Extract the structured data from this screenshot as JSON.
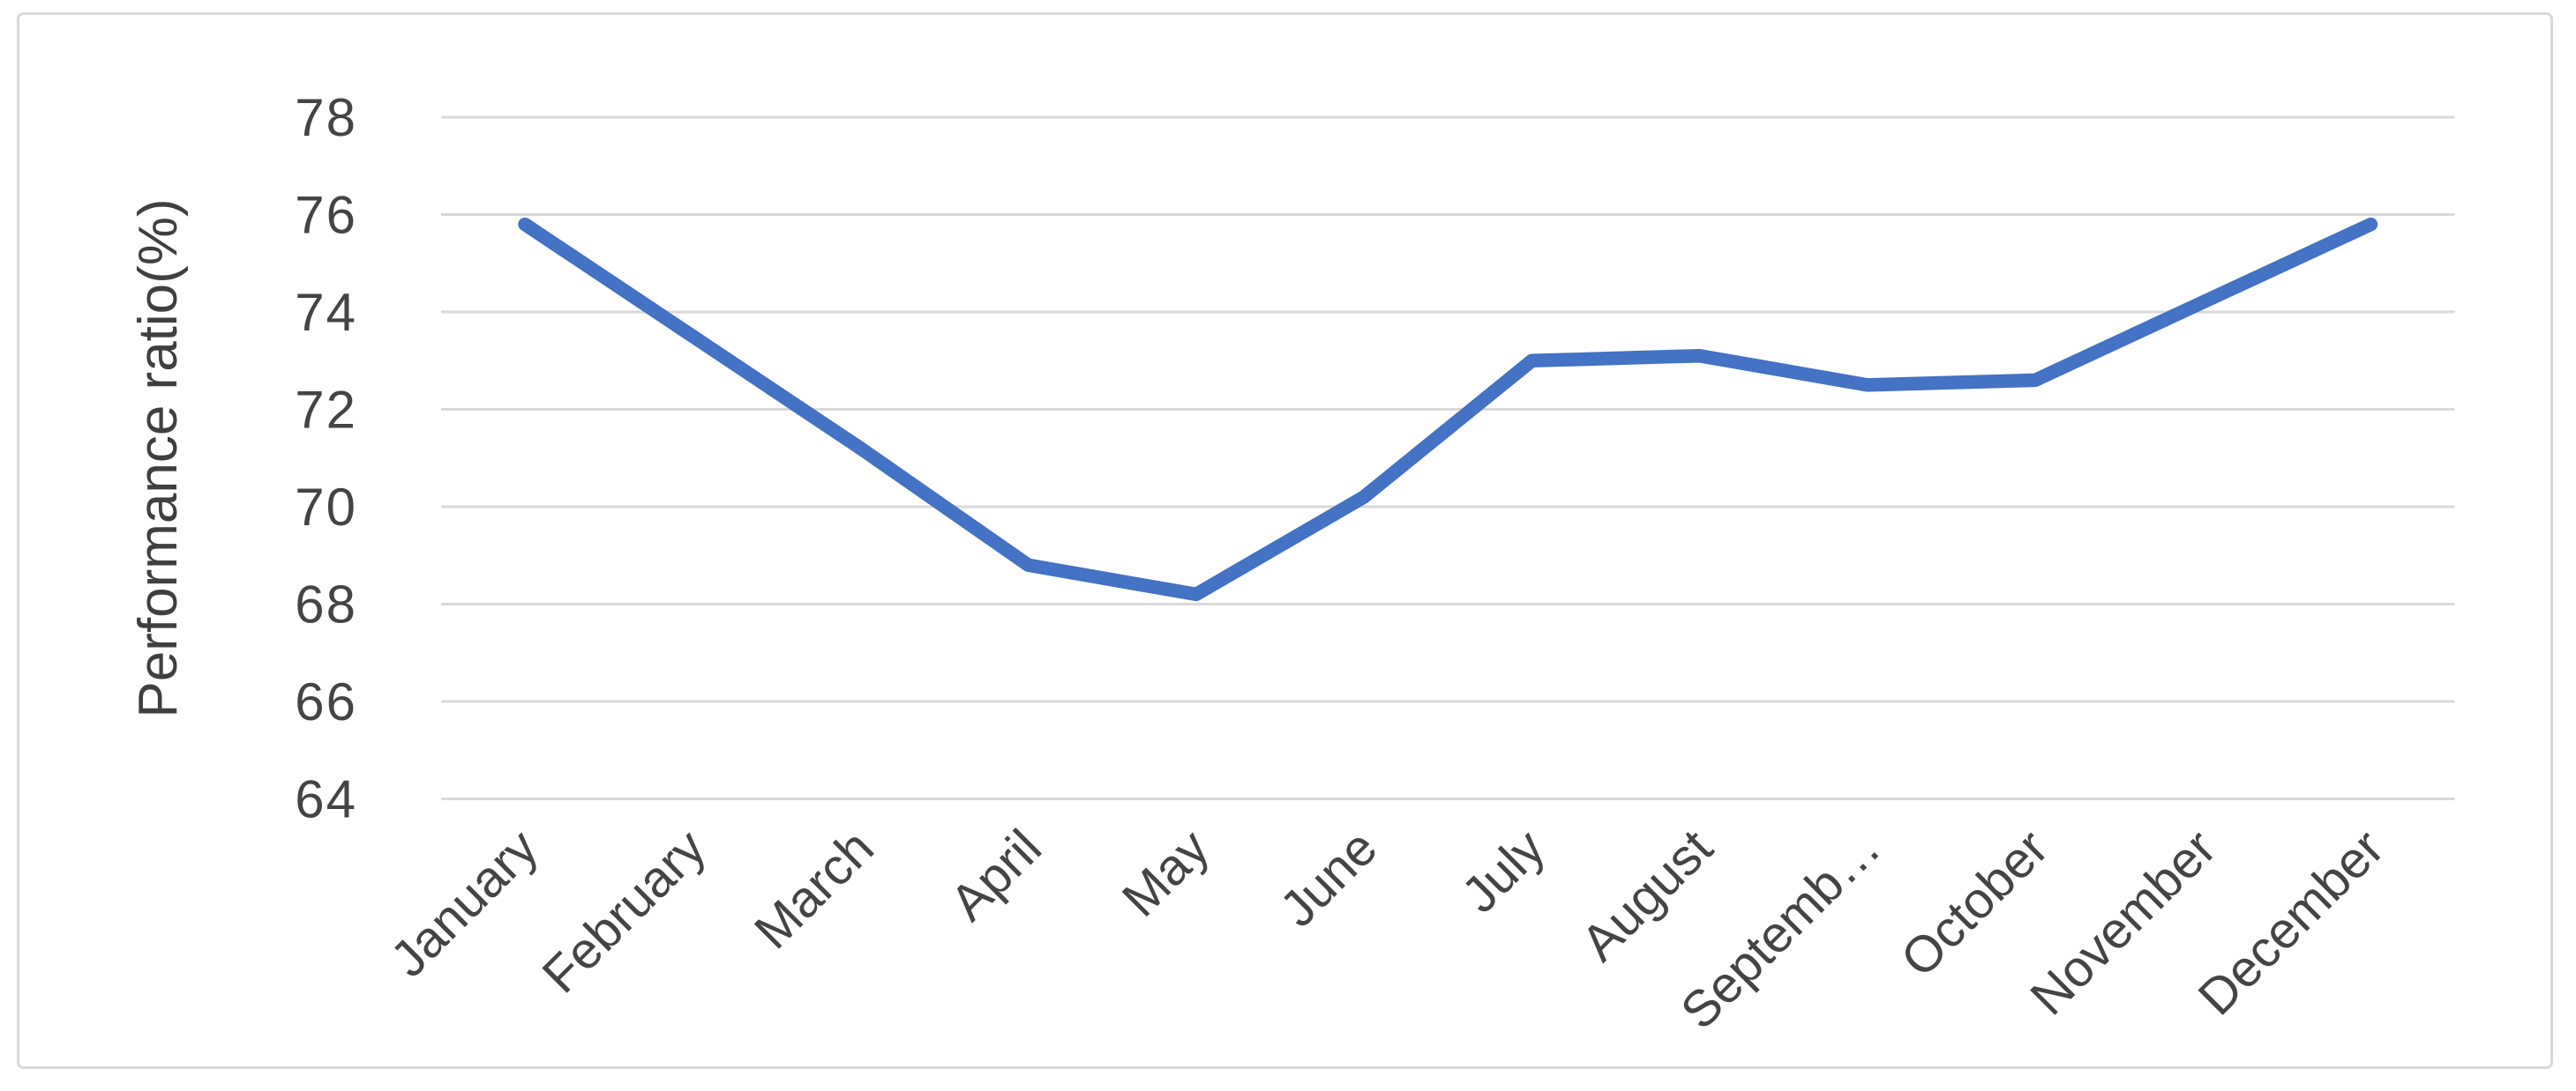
{
  "window": {
    "background": "#ffffff",
    "frame_border_color": "#d9d9d9"
  },
  "chart_data": {
    "type": "line",
    "title": "",
    "xlabel": "",
    "ylabel": "Performance ratio(%)",
    "categories": [
      "January",
      "February",
      "March",
      "April",
      "May",
      "June",
      "July",
      "August",
      "September",
      "October",
      "November",
      "December"
    ],
    "xtick_labels": [
      "January",
      "February",
      "March",
      "April",
      "May",
      "June",
      "July",
      "August",
      "Septemb…",
      "October",
      "November",
      "December"
    ],
    "series": [
      {
        "name": "Performance ratio(%)",
        "color": "#4472C4",
        "values": [
          75.8,
          73.5,
          71.2,
          68.8,
          68.2,
          70.2,
          73.0,
          73.1,
          72.5,
          72.6,
          74.2,
          75.8
        ]
      }
    ],
    "ylim": [
      64,
      78
    ],
    "ytick_step": 2,
    "yticks": [
      64,
      66,
      68,
      70,
      72,
      74,
      76,
      78
    ],
    "grid": "horizontal-only",
    "legend_position": "none",
    "colors": {
      "gridline": "#d9d9d9",
      "tick_text": "#444444",
      "axis_title_text": "#3f3f3f"
    }
  }
}
